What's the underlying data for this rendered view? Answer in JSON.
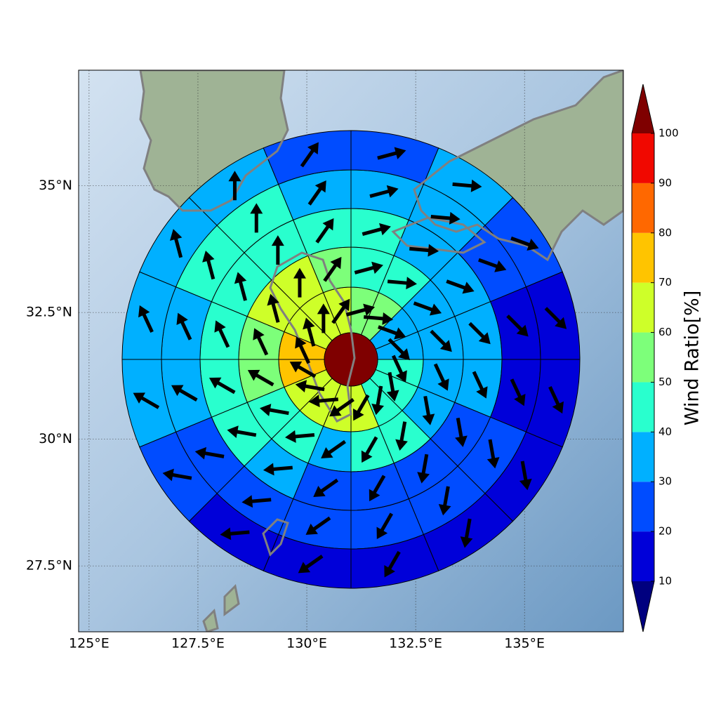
{
  "chart_data": {
    "type": "polar-grid-map",
    "xlim": [
      124.76,
      137.27
    ],
    "ylim": [
      26.2,
      37.28
    ],
    "xticks": [
      {
        "value": 125,
        "label": "125°E"
      },
      {
        "value": 127.5,
        "label": "127.5°E"
      },
      {
        "value": 130,
        "label": "130°E"
      },
      {
        "value": 132.5,
        "label": "132.5°E"
      },
      {
        "value": 135,
        "label": "135°E"
      }
    ],
    "yticks": [
      {
        "value": 27.5,
        "label": "27.5°N"
      },
      {
        "value": 30,
        "label": "30°N"
      },
      {
        "value": 32.5,
        "label": "32.5°N"
      },
      {
        "value": 35,
        "label": "35°N"
      }
    ],
    "grid": true,
    "center_value": 105,
    "rings": [
      {
        "values": [
          55,
          55,
          35,
          35,
          45,
          45,
          45,
          65,
          65,
          65,
          65,
          75,
          75,
          65,
          65,
          65
        ],
        "directions": [
          75,
          95,
          110,
          135,
          155,
          170,
          190,
          210,
          235,
          265,
          280,
          300,
          335,
          345,
          0,
          35
        ]
      },
      {
        "values": [
          45,
          45,
          35,
          35,
          35,
          35,
          45,
          45,
          35,
          45,
          45,
          55,
          55,
          65,
          65,
          55
        ],
        "directions": [
          75,
          95,
          110,
          135,
          155,
          170,
          190,
          210,
          235,
          265,
          280,
          300,
          335,
          345,
          0,
          35
        ]
      },
      {
        "values": [
          45,
          35,
          35,
          35,
          35,
          25,
          25,
          25,
          25,
          35,
          45,
          45,
          45,
          45,
          45,
          45
        ],
        "directions": [
          75,
          95,
          110,
          135,
          155,
          170,
          190,
          210,
          235,
          265,
          280,
          300,
          335,
          345,
          0,
          35
        ]
      },
      {
        "values": [
          35,
          35,
          25,
          15,
          15,
          25,
          25,
          25,
          25,
          25,
          25,
          35,
          35,
          45,
          45,
          35
        ],
        "directions": [
          75,
          95,
          110,
          135,
          155,
          170,
          190,
          210,
          235,
          265,
          280,
          300,
          335,
          345,
          0,
          35
        ]
      },
      {
        "values": [
          25,
          35,
          25,
          15,
          15,
          15,
          15,
          15,
          15,
          15,
          25,
          35,
          35,
          35,
          35,
          25
        ],
        "directions": [
          75,
          95,
          110,
          135,
          155,
          170,
          190,
          210,
          235,
          265,
          280,
          300,
          335,
          345,
          0,
          35
        ]
      }
    ],
    "colorbar": {
      "label": "Wind Ratio[%]",
      "levels": [
        10,
        20,
        30,
        40,
        50,
        60,
        70,
        80,
        90,
        100
      ],
      "colors": [
        "#0000d9",
        "#004cff",
        "#00b0ff",
        "#29ffce",
        "#7dff7a",
        "#ceff29",
        "#ffc400",
        "#ff6800",
        "#f10800"
      ],
      "under_color": "#00007f",
      "over_color": "#7f0000"
    }
  }
}
